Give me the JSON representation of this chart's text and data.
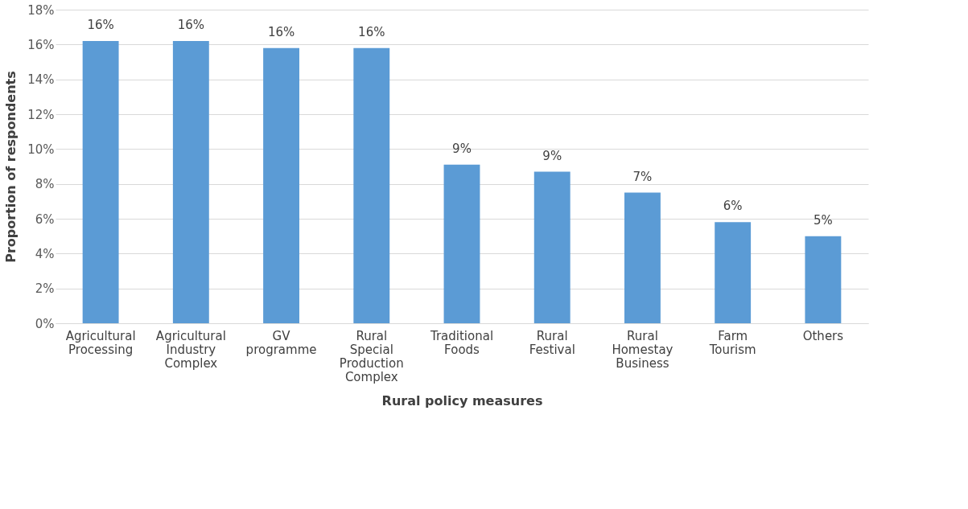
{
  "chart_data": {
    "type": "bar",
    "xlabel": "Rural policy measures",
    "ylabel": "Proportion of respondents",
    "categories": [
      "Agricultural Processing",
      "Agricultural Industry Complex",
      "GV programme",
      "Rural Special Production Complex",
      "Traditional Foods",
      "Rural Festival",
      "Rural Homestay Business",
      "Farm Tourism",
      "Others"
    ],
    "values": [
      16.2,
      16.2,
      15.8,
      15.8,
      9.1,
      8.7,
      7.5,
      5.8,
      5.0
    ],
    "value_labels": [
      "16%",
      "16%",
      "16%",
      "16%",
      "9%",
      "9%",
      "7%",
      "6%",
      "5%"
    ],
    "color": "#5b9bd5",
    "ylim": [
      0,
      18
    ],
    "yticks": [
      {
        "value": 0,
        "label": "0%"
      },
      {
        "value": 2,
        "label": "2%"
      },
      {
        "value": 4,
        "label": "4%"
      },
      {
        "value": 6,
        "label": "6%"
      },
      {
        "value": 8,
        "label": "8%"
      },
      {
        "value": 10,
        "label": "10%"
      },
      {
        "value": 12,
        "label": "12%"
      },
      {
        "value": 14,
        "label": "14%"
      },
      {
        "value": 16,
        "label": "16%"
      },
      {
        "value": 18,
        "label": "18%"
      }
    ],
    "grid": "y"
  }
}
